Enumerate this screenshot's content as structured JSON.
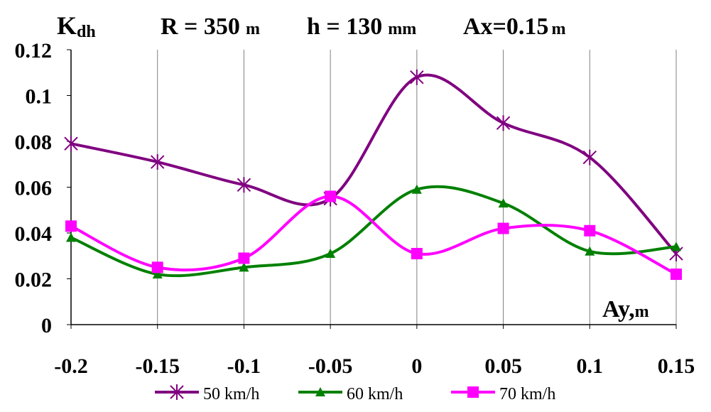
{
  "chart_data": {
    "type": "line",
    "title_parts": {
      "ylabel_main": "K",
      "ylabel_sub": "dh",
      "r_label": "R = 350",
      "r_unit": "m",
      "h_label": "h = 130",
      "h_unit": "mm",
      "ax_label": "Ax=0.15",
      "ax_unit": "m"
    },
    "xlabel": "Ay,",
    "xlabel_unit": "m",
    "x": [
      -0.2,
      -0.15,
      -0.1,
      -0.05,
      0,
      0.05,
      0.1,
      0.15
    ],
    "x_tick_labels": [
      "-0.2",
      "-0.15",
      "-0.1",
      "-0.05",
      "0",
      "0.05",
      "0.1",
      "0.15"
    ],
    "y_tick_labels": [
      "0",
      "0.02",
      "0.04",
      "0.06",
      "0.08",
      "0.1",
      "0.12"
    ],
    "y_ticks": [
      0,
      0.02,
      0.04,
      0.06,
      0.08,
      0.1,
      0.12
    ],
    "xlim": [
      -0.2,
      0.15
    ],
    "ylim": [
      0,
      0.12
    ],
    "grid": "vertical",
    "legend_position": "bottom",
    "series": [
      {
        "name": "50 km/h",
        "color": "#800080",
        "marker": "star",
        "values": [
          0.079,
          0.071,
          0.061,
          0.055,
          0.108,
          0.088,
          0.073,
          0.031
        ]
      },
      {
        "name": "60 km/h",
        "color": "#008000",
        "marker": "triangle",
        "values": [
          0.038,
          0.022,
          0.025,
          0.031,
          0.059,
          0.053,
          0.032,
          0.034
        ]
      },
      {
        "name": "70 km/h",
        "color": "#ff00ff",
        "marker": "square",
        "values": [
          0.043,
          0.025,
          0.029,
          0.056,
          0.031,
          0.042,
          0.041,
          0.022
        ]
      }
    ]
  }
}
